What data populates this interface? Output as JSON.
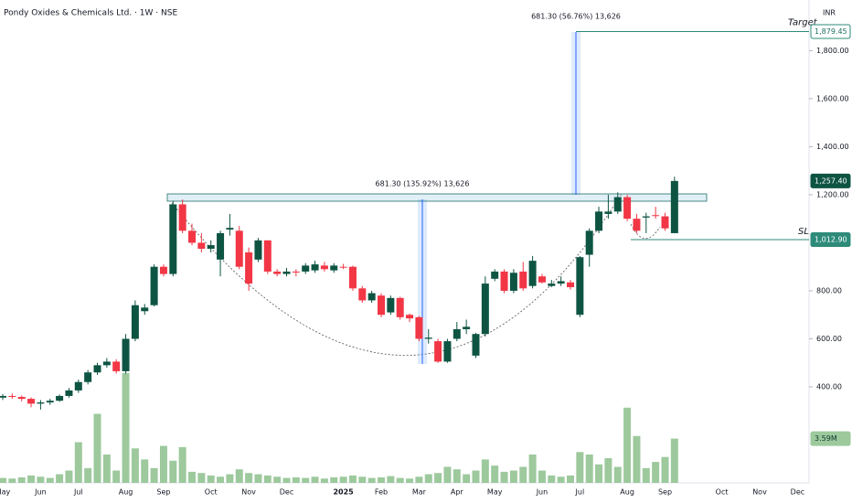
{
  "chart_data": {
    "type": "candlestick",
    "title": "Pondy Oxides & Chemicals Ltd. · 1W · NSE",
    "currency": "INR",
    "categories": [
      "May",
      null,
      null,
      null,
      "Jun",
      null,
      null,
      null,
      "Jul",
      null,
      null,
      null,
      null,
      "Aug",
      null,
      null,
      null,
      "Sep",
      null,
      null,
      null,
      null,
      "Oct",
      null,
      null,
      null,
      "Nov",
      null,
      null,
      null,
      "Dec",
      null,
      null,
      null,
      null,
      null,
      "2025",
      null,
      null,
      null,
      "Feb",
      null,
      null,
      null,
      "Mar",
      null,
      null,
      null,
      "Apr",
      null,
      null,
      null,
      "May",
      null,
      null,
      null,
      null,
      "Jun",
      null,
      null,
      null,
      "Jul",
      null,
      null,
      null,
      null,
      "Aug",
      null,
      null,
      null,
      "Sep",
      null,
      null,
      null,
      null,
      null,
      "Oct",
      null,
      null,
      null,
      "Nov",
      null,
      null,
      null,
      "Dec",
      null
    ],
    "open": [
      355,
      362,
      358,
      350,
      330,
      335,
      342,
      362,
      385,
      420,
      460,
      490,
      505,
      465,
      600,
      715,
      740,
      900,
      870,
      1160,
      1050,
      1000,
      975,
      930,
      1055,
      1050,
      960,
      930,
      1010,
      880,
      870,
      880,
      880,
      885,
      905,
      885,
      900,
      900,
      810,
      760,
      780,
      710,
      770,
      700,
      690,
      600,
      590,
      505,
      600,
      640,
      530,
      620,
      850,
      880,
      800,
      880,
      820,
      860,
      820,
      830,
      835,
      700,
      950,
      1050,
      1120,
      1130,
      1190,
      1100,
      1105,
      1115,
      1110,
      1040,
      null,
      null,
      null,
      null,
      null,
      null,
      null,
      null,
      null,
      null,
      null,
      null,
      null,
      null
    ],
    "high": [
      370,
      372,
      364,
      356,
      345,
      350,
      368,
      395,
      430,
      470,
      500,
      520,
      515,
      620,
      760,
      745,
      910,
      910,
      1175,
      1180,
      1080,
      1040,
      1010,
      1050,
      1120,
      1070,
      980,
      1020,
      1010,
      890,
      895,
      890,
      915,
      925,
      920,
      915,
      912,
      905,
      820,
      800,
      790,
      780,
      775,
      705,
      695,
      640,
      600,
      600,
      670,
      680,
      625,
      860,
      890,
      890,
      890,
      920,
      945,
      870,
      845,
      860,
      845,
      945,
      1060,
      1150,
      1200,
      1210,
      1200,
      1120,
      1125,
      1150,
      1125,
      1275,
      null,
      null,
      null,
      null,
      null,
      null,
      null,
      null,
      null,
      null,
      null,
      null,
      null,
      null
    ],
    "low": [
      345,
      350,
      340,
      315,
      305,
      325,
      338,
      355,
      375,
      410,
      450,
      480,
      455,
      455,
      590,
      700,
      735,
      860,
      860,
      1040,
      990,
      960,
      960,
      860,
      1030,
      890,
      800,
      920,
      870,
      860,
      860,
      860,
      870,
      875,
      880,
      875,
      890,
      800,
      750,
      750,
      690,
      700,
      680,
      670,
      590,
      580,
      500,
      500,
      590,
      620,
      520,
      610,
      840,
      790,
      790,
      800,
      810,
      830,
      815,
      820,
      805,
      690,
      900,
      1040,
      1100,
      1120,
      1090,
      1040,
      1040,
      1100,
      1050,
      1040,
      null,
      null,
      null,
      null,
      null,
      null,
      null,
      null,
      null,
      null,
      null,
      null,
      null,
      null
    ],
    "close": [
      362,
      358,
      350,
      330,
      335,
      342,
      362,
      385,
      420,
      460,
      490,
      505,
      465,
      600,
      740,
      730,
      900,
      870,
      1160,
      1050,
      1000,
      975,
      990,
      1040,
      1062,
      900,
      830,
      1010,
      880,
      870,
      880,
      878,
      905,
      910,
      890,
      905,
      898,
      810,
      760,
      790,
      700,
      770,
      690,
      685,
      600,
      605,
      505,
      590,
      640,
      650,
      620,
      830,
      880,
      800,
      875,
      810,
      925,
      835,
      830,
      840,
      815,
      940,
      1050,
      1130,
      1130,
      1190,
      1100,
      1050,
      1110,
      1112,
      1060,
      1257.4,
      null,
      null,
      null,
      null,
      null,
      null,
      null,
      null,
      null,
      null,
      null,
      null,
      null,
      null
    ],
    "volume": [
      400000,
      350000,
      450000,
      600000,
      500000,
      400000,
      700000,
      1000000,
      3300000,
      1200000,
      5600000,
      2300000,
      1000000,
      8900000,
      2800000,
      1900000,
      1200000,
      3000000,
      1800000,
      2900000,
      900000,
      800000,
      600000,
      500000,
      700000,
      1100000,
      800000,
      700000,
      600000,
      500000,
      400000,
      450000,
      400000,
      500000,
      350000,
      450000,
      500000,
      600000,
      500000,
      400000,
      450000,
      550000,
      400000,
      350000,
      500000,
      700000,
      800000,
      1300000,
      1100000,
      700000,
      1000000,
      1900000,
      1400000,
      900000,
      1000000,
      1300000,
      2300000,
      1000000,
      600000,
      500000,
      600000,
      2500000,
      2300000,
      1500000,
      2000000,
      1300000,
      6100000,
      3800000,
      1200000,
      1700000,
      2100000,
      3590000,
      null,
      null,
      null,
      null,
      null,
      null,
      null,
      null,
      null,
      null,
      null,
      null,
      null,
      null
    ],
    "last_price_label": "1,257.40",
    "volume_last_label": "3.59M",
    "up_color": "#0e5443",
    "down_color": "#f23645",
    "volume_color": "#9dc99d",
    "ylim": [
      0,
      2011
    ],
    "yticks": [
      {
        "value": 400,
        "label": "400.00"
      },
      {
        "value": 600,
        "label": "600.00"
      },
      {
        "value": 800,
        "label": "800.00"
      },
      {
        "value": 1200,
        "label": "1,200.00"
      },
      {
        "value": 1400,
        "label": "1,400.00"
      },
      {
        "value": 1600,
        "label": "1,600.00"
      },
      {
        "value": 1800,
        "label": "1,800.00"
      }
    ],
    "grid": false,
    "target": {
      "label": "Target",
      "value": 1879.45,
      "price_label": "1,879.45"
    },
    "stop_loss": {
      "label": "SL",
      "value": 1012.9,
      "price_label": "1,012.90"
    },
    "measure_labels": [
      "681.30 (56.76%) 13,626",
      "681.30 (135.92%) 13,626"
    ]
  }
}
